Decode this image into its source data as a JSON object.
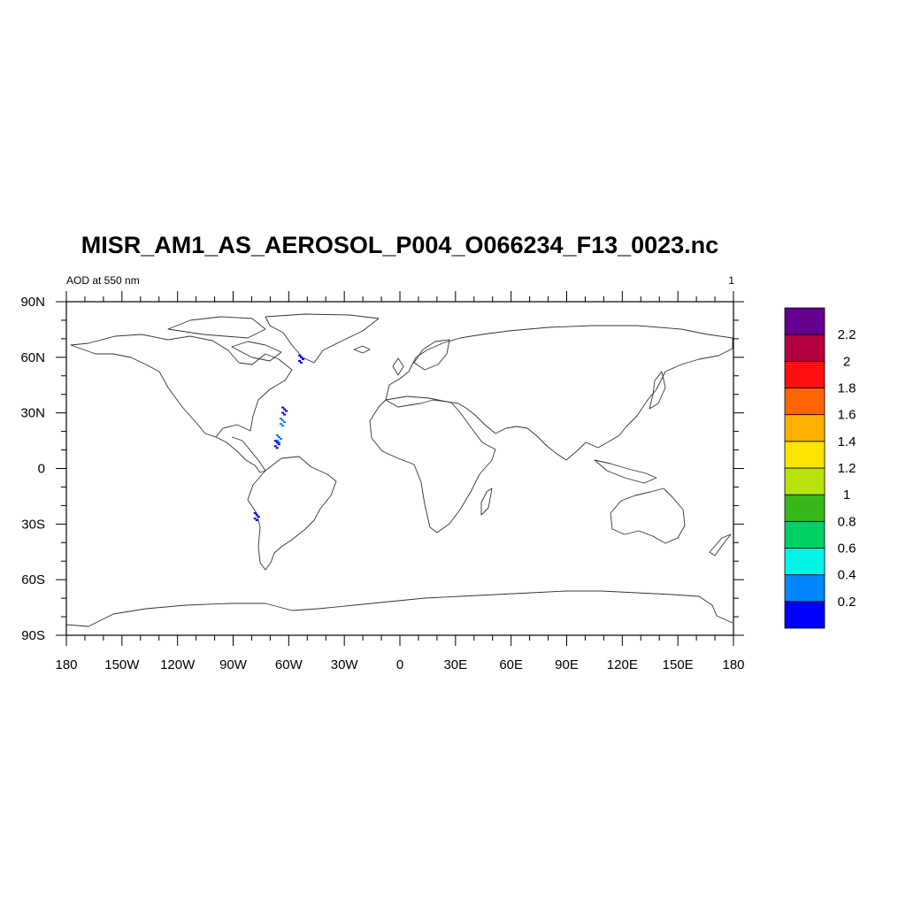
{
  "title": "MISR_AM1_AS_AEROSOL_P004_O066234_F13_0023.nc",
  "subtitle_left": "AOD at 550 nm",
  "subtitle_right": "1",
  "map": {
    "projection": "cylindrical-equidistant",
    "lon_range": [
      -180,
      180
    ],
    "lat_range": [
      -90,
      90
    ],
    "x_ticks": [
      {
        "value": -180,
        "label": "180"
      },
      {
        "value": -150,
        "label": "150W"
      },
      {
        "value": -120,
        "label": "120W"
      },
      {
        "value": -90,
        "label": "90W"
      },
      {
        "value": -60,
        "label": "60W"
      },
      {
        "value": -30,
        "label": "30W"
      },
      {
        "value": 0,
        "label": "0"
      },
      {
        "value": 30,
        "label": "30E"
      },
      {
        "value": 60,
        "label": "60E"
      },
      {
        "value": 90,
        "label": "90E"
      },
      {
        "value": 120,
        "label": "120E"
      },
      {
        "value": 150,
        "label": "150E"
      },
      {
        "value": 180,
        "label": "180"
      }
    ],
    "y_ticks": [
      {
        "value": 90,
        "label": "90N"
      },
      {
        "value": 60,
        "label": "60N"
      },
      {
        "value": 30,
        "label": "30N"
      },
      {
        "value": 0,
        "label": "0"
      },
      {
        "value": -30,
        "label": "30S"
      },
      {
        "value": -60,
        "label": "60S"
      },
      {
        "value": -90,
        "label": "90S"
      }
    ],
    "data_patches": [
      {
        "region": "Labrador coast",
        "lon": -53,
        "lat": 59,
        "color": "#0000ff"
      },
      {
        "region": "Western Atlantic swath",
        "lon": -62,
        "lat": 31,
        "color": "#0000ff"
      },
      {
        "region": "Western Atlantic swath",
        "lon": -63,
        "lat": 25,
        "color": "#0080ff"
      },
      {
        "region": "Caribbean",
        "lon": -65,
        "lat": 16,
        "color": "#0080ff"
      },
      {
        "region": "Caribbean",
        "lon": -66,
        "lat": 13,
        "color": "#0000ff"
      },
      {
        "region": "Chile coast",
        "lon": -77,
        "lat": -26,
        "color": "#0000ff"
      }
    ]
  },
  "colorbar": {
    "bins": [
      {
        "color": "#0000ff",
        "label": "0.2"
      },
      {
        "color": "#0087ff",
        "label": "0.4"
      },
      {
        "color": "#00f5e8",
        "label": "0.6"
      },
      {
        "color": "#00cf64",
        "label": "0.8"
      },
      {
        "color": "#36b81a",
        "label": "1"
      },
      {
        "color": "#b6e30b",
        "label": "1.2"
      },
      {
        "color": "#ffe300",
        "label": "1.4"
      },
      {
        "color": "#ffaf00",
        "label": "1.6"
      },
      {
        "color": "#ff6400",
        "label": "1.8"
      },
      {
        "color": "#ff0f0f",
        "label": "2"
      },
      {
        "color": "#b30040",
        "label": "2.2"
      },
      {
        "color": "#63008e",
        "label": ""
      }
    ]
  }
}
